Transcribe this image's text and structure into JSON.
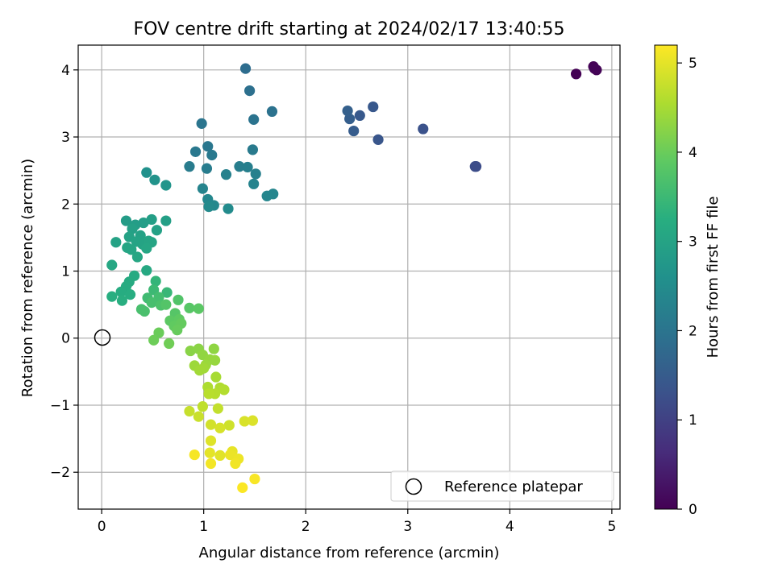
{
  "chart_data": {
    "type": "scatter",
    "title": "FOV centre drift starting at 2024/02/17 13:40:55",
    "xlabel": "Angular distance from reference (arcmin)",
    "ylabel": "Rotation from reference (arcmin)",
    "xlim": [
      -0.23,
      5.08
    ],
    "ylim": [
      -2.55,
      4.37
    ],
    "xticks": [
      0,
      1,
      2,
      3,
      4,
      5
    ],
    "xtick_labels": [
      "0",
      "1",
      "2",
      "3",
      "4",
      "5"
    ],
    "yticks": [
      -2,
      -1,
      0,
      1,
      2,
      3,
      4
    ],
    "ytick_labels": [
      "−2",
      "−1",
      "0",
      "1",
      "2",
      "3",
      "4"
    ],
    "grid": true,
    "legend": {
      "placement": "lower-right",
      "entries": [
        "Reference platepar"
      ]
    },
    "reference_point": {
      "x": 0,
      "y": 0
    },
    "colorbar": {
      "label": "Hours from first FF file",
      "colormap": "viridis",
      "range": [
        0,
        5.2
      ],
      "ticks": [
        0,
        1,
        2,
        3,
        4,
        5
      ],
      "tick_labels": [
        "0",
        "1",
        "2",
        "3",
        "4",
        "5"
      ]
    },
    "series": [
      {
        "points": [
          [
            4.65,
            3.94,
            0.0
          ],
          [
            4.82,
            4.05,
            0.02
          ],
          [
            4.85,
            4.0,
            0.04
          ],
          [
            4.83,
            4.02,
            0.05
          ],
          [
            3.67,
            2.56,
            1.2
          ],
          [
            3.66,
            2.56,
            1.22
          ],
          [
            3.15,
            3.12,
            1.3
          ],
          [
            2.71,
            2.96,
            1.38
          ],
          [
            2.66,
            3.45,
            1.42
          ],
          [
            2.53,
            3.32,
            1.45
          ],
          [
            2.47,
            3.09,
            1.5
          ],
          [
            2.43,
            3.27,
            1.54
          ],
          [
            2.41,
            3.39,
            1.58
          ],
          [
            1.41,
            4.02,
            1.85
          ],
          [
            1.45,
            3.69,
            1.9
          ],
          [
            1.67,
            3.38,
            1.95
          ],
          [
            1.49,
            3.26,
            1.98
          ],
          [
            0.98,
            3.2,
            2.02
          ],
          [
            1.04,
            2.86,
            2.05
          ],
          [
            0.92,
            2.78,
            2.07
          ],
          [
            1.08,
            2.73,
            2.1
          ],
          [
            1.48,
            2.81,
            2.12
          ],
          [
            0.86,
            2.56,
            2.15
          ],
          [
            1.03,
            2.53,
            2.17
          ],
          [
            1.35,
            2.56,
            2.2
          ],
          [
            1.43,
            2.55,
            2.22
          ],
          [
            1.51,
            2.45,
            2.25
          ],
          [
            1.22,
            2.44,
            2.27
          ],
          [
            1.49,
            2.3,
            2.3
          ],
          [
            0.99,
            2.23,
            2.32
          ],
          [
            1.68,
            2.15,
            2.35
          ],
          [
            1.62,
            2.12,
            2.37
          ],
          [
            1.04,
            2.07,
            2.4
          ],
          [
            1.1,
            1.98,
            2.42
          ],
          [
            1.05,
            1.96,
            2.45
          ],
          [
            1.24,
            1.93,
            2.47
          ],
          [
            0.44,
            2.47,
            2.6
          ],
          [
            0.52,
            2.36,
            2.65
          ],
          [
            0.63,
            2.28,
            2.68
          ],
          [
            0.24,
            1.75,
            2.85
          ],
          [
            0.33,
            1.69,
            2.87
          ],
          [
            0.41,
            1.72,
            2.88
          ],
          [
            0.49,
            1.77,
            2.9
          ],
          [
            0.63,
            1.75,
            2.92
          ],
          [
            0.3,
            1.63,
            2.93
          ],
          [
            0.54,
            1.61,
            2.95
          ],
          [
            0.38,
            1.53,
            2.96
          ],
          [
            0.27,
            1.51,
            2.97
          ],
          [
            0.14,
            1.43,
            2.98
          ],
          [
            0.34,
            1.44,
            3.0
          ],
          [
            0.4,
            1.4,
            3.01
          ],
          [
            0.46,
            1.45,
            3.02
          ],
          [
            0.49,
            1.43,
            3.03
          ],
          [
            0.25,
            1.35,
            3.04
          ],
          [
            0.29,
            1.32,
            3.05
          ],
          [
            0.44,
            1.34,
            3.06
          ],
          [
            0.35,
            1.21,
            3.08
          ],
          [
            0.1,
            1.09,
            3.1
          ],
          [
            0.44,
            1.01,
            3.12
          ],
          [
            0.32,
            0.93,
            3.15
          ],
          [
            0.27,
            0.84,
            3.17
          ],
          [
            0.24,
            0.77,
            3.18
          ],
          [
            0.19,
            0.69,
            3.2
          ],
          [
            0.28,
            0.65,
            3.22
          ],
          [
            0.1,
            0.62,
            3.24
          ],
          [
            0.2,
            0.56,
            3.26
          ],
          [
            0.53,
            0.85,
            3.4
          ],
          [
            0.64,
            0.68,
            3.45
          ],
          [
            0.51,
            0.72,
            3.5
          ],
          [
            0.45,
            0.6,
            3.55
          ],
          [
            0.56,
            0.61,
            3.6
          ],
          [
            0.49,
            0.53,
            3.63
          ],
          [
            0.39,
            0.43,
            3.65
          ],
          [
            0.42,
            0.4,
            3.67
          ],
          [
            0.58,
            0.49,
            3.7
          ],
          [
            0.75,
            0.57,
            3.75
          ],
          [
            0.63,
            0.5,
            3.78
          ],
          [
            0.72,
            0.37,
            3.8
          ],
          [
            0.86,
            0.45,
            3.82
          ],
          [
            0.95,
            0.44,
            3.85
          ],
          [
            0.67,
            0.26,
            3.88
          ],
          [
            0.76,
            0.28,
            3.9
          ],
          [
            0.71,
            0.18,
            3.92
          ],
          [
            0.78,
            0.22,
            3.95
          ],
          [
            0.74,
            0.12,
            3.97
          ],
          [
            0.56,
            0.08,
            4.0
          ],
          [
            0.51,
            -0.03,
            4.02
          ],
          [
            0.66,
            -0.08,
            4.05
          ],
          [
            0.87,
            -0.19,
            4.25
          ],
          [
            0.95,
            -0.16,
            4.27
          ],
          [
            1.1,
            -0.16,
            4.3
          ],
          [
            0.99,
            -0.25,
            4.32
          ],
          [
            1.06,
            -0.32,
            4.35
          ],
          [
            1.11,
            -0.33,
            4.37
          ],
          [
            1.02,
            -0.4,
            4.4
          ],
          [
            0.91,
            -0.41,
            4.42
          ],
          [
            1.0,
            -0.45,
            4.44
          ],
          [
            0.96,
            -0.48,
            4.46
          ],
          [
            1.12,
            -0.58,
            4.5
          ],
          [
            1.04,
            -0.73,
            4.55
          ],
          [
            1.16,
            -0.74,
            4.57
          ],
          [
            1.2,
            -0.77,
            4.6
          ],
          [
            1.11,
            -0.83,
            4.62
          ],
          [
            1.05,
            -0.83,
            4.64
          ],
          [
            0.99,
            -1.02,
            4.7
          ],
          [
            1.14,
            -1.05,
            4.72
          ],
          [
            0.86,
            -1.09,
            4.75
          ],
          [
            0.95,
            -1.17,
            4.78
          ],
          [
            1.25,
            -1.3,
            4.82
          ],
          [
            1.07,
            -1.29,
            4.85
          ],
          [
            1.16,
            -1.34,
            4.88
          ],
          [
            1.4,
            -1.24,
            4.9
          ],
          [
            1.48,
            -1.23,
            4.92
          ],
          [
            1.07,
            -1.53,
            4.95
          ],
          [
            1.16,
            -1.75,
            4.97
          ],
          [
            1.06,
            -1.71,
            5.0
          ],
          [
            1.28,
            -1.69,
            5.02
          ],
          [
            1.26,
            -1.74,
            5.05
          ],
          [
            1.34,
            -1.8,
            5.07
          ],
          [
            1.31,
            -1.87,
            5.1
          ],
          [
            1.07,
            -1.87,
            5.12
          ],
          [
            0.91,
            -1.74,
            5.14
          ],
          [
            1.5,
            -2.1,
            5.16
          ],
          [
            1.38,
            -2.23,
            5.18
          ]
        ]
      }
    ]
  }
}
